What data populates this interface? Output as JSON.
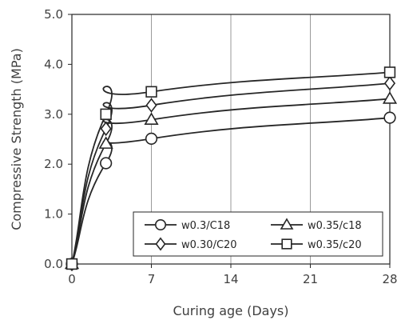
{
  "chart_data": {
    "type": "line",
    "title": "",
    "xlabel": "Curing age (Days)",
    "ylabel": "Compressive Strength (MPa)",
    "xlim": [
      0,
      28
    ],
    "ylim": [
      0,
      5
    ],
    "x_ticks": [
      0,
      7,
      14,
      21,
      28
    ],
    "x_tick_labels": [
      "0",
      "7",
      "14",
      "21",
      "28"
    ],
    "y_ticks": [
      0,
      1,
      2,
      3,
      4,
      5
    ],
    "y_tick_labels": [
      "0.0",
      "1.0",
      "2.0",
      "3.0",
      "4.0",
      "5.0"
    ],
    "grid": "vertical",
    "legend_position": "bottom-right",
    "series": [
      {
        "name": "w0.3/C18",
        "marker": "circle",
        "x": [
          0,
          3,
          7,
          28
        ],
        "y": [
          0.0,
          2.02,
          2.51,
          2.93
        ]
      },
      {
        "name": "w0.35/c18",
        "marker": "triangle",
        "x": [
          0,
          3,
          7,
          28
        ],
        "y": [
          0.0,
          2.41,
          2.89,
          3.31
        ]
      },
      {
        "name": "w0.30/C20",
        "marker": "diamond",
        "x": [
          0,
          3,
          7,
          28
        ],
        "y": [
          0.0,
          2.71,
          3.18,
          3.62
        ]
      },
      {
        "name": "w0.35/c20",
        "marker": "square",
        "x": [
          0,
          3,
          7,
          28
        ],
        "y": [
          0.0,
          3.0,
          3.45,
          3.84
        ]
      }
    ]
  }
}
